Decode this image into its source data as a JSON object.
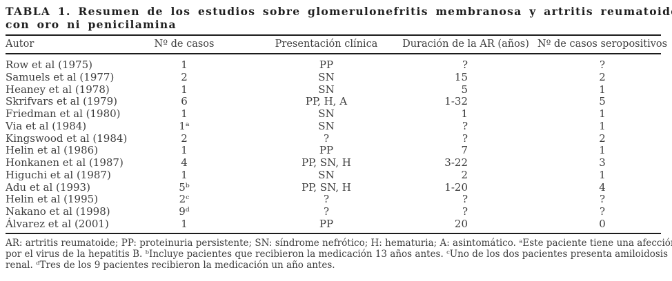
{
  "colors": {
    "background": "#ffffff",
    "text": "#3d3d3d",
    "title": "#1f1f1f",
    "rule": "#1c1c1c"
  },
  "title": {
    "line1": "TABLA 1. Resumen de los estudios sobre glomerulonefritis membranosa y artritis reumatoide no tratada",
    "line2": "con oro ni penicilamina"
  },
  "table": {
    "columns": [
      "Autor",
      "Nº de casos",
      "Presentación clínica",
      "Duración de la AR (años)",
      "Nº de casos seropositivos"
    ],
    "rows": [
      {
        "autor": "Row et al (1975)",
        "casos": "1",
        "presentacion": "PP",
        "duracion": "?",
        "seropositivos": "?"
      },
      {
        "autor": "Samuels et al (1977)",
        "casos": "2",
        "presentacion": "SN",
        "duracion": "15",
        "seropositivos": "2"
      },
      {
        "autor": "Heaney et al (1978)",
        "casos": "1",
        "presentacion": "SN",
        "duracion": "5",
        "seropositivos": "1"
      },
      {
        "autor": "Skrifvars et al (1979)",
        "casos": "6",
        "presentacion": "PP, H, A",
        "duracion": "1-32",
        "seropositivos": "5"
      },
      {
        "autor": "Friedman et al (1980)",
        "casos": "1",
        "presentacion": "SN",
        "duracion": "1",
        "seropositivos": "1"
      },
      {
        "autor": "Via et al (1984)",
        "casos": "1ᵃ",
        "presentacion": "SN",
        "duracion": "?",
        "seropositivos": "1"
      },
      {
        "autor": "Kingswood et al (1984)",
        "casos": "2",
        "presentacion": "?",
        "duracion": "?",
        "seropositivos": "2"
      },
      {
        "autor": "Helin et al (1986)",
        "casos": "1",
        "presentacion": "PP",
        "duracion": "7",
        "seropositivos": "1"
      },
      {
        "autor": "Honkanen et al (1987)",
        "casos": "4",
        "presentacion": "PP, SN, H",
        "duracion": "3-22",
        "seropositivos": "3"
      },
      {
        "autor": "Higuchi et al (1987)",
        "casos": "1",
        "presentacion": "SN",
        "duracion": "2",
        "seropositivos": "1"
      },
      {
        "autor": "Adu et al (1993)",
        "casos": "5ᵇ",
        "presentacion": "PP, SN, H",
        "duracion": "1-20",
        "seropositivos": "4"
      },
      {
        "autor": "Helin et al (1995)",
        "casos": "2ᶜ",
        "presentacion": "?",
        "duracion": "?",
        "seropositivos": "?"
      },
      {
        "autor": "Nakano et al (1998)",
        "casos": "9ᵈ",
        "presentacion": "?",
        "duracion": "?",
        "seropositivos": "?"
      },
      {
        "autor": "Álvarez et al (2001)",
        "casos": "1",
        "presentacion": "PP",
        "duracion": "20",
        "seropositivos": "0"
      }
    ]
  },
  "footnotes": {
    "lines": [
      "AR: artritis reumatoide; PP: proteinuria persistente; SN: síndrome nefrótico; H: hematuria; A: asintomático. ᵃEste paciente tiene una afección renal",
      "por el virus de la hepatitis B. ᵇIncluye pacientes que recibieron la medicación 13 años antes. ᶜUno de los dos pacientes presenta amiloidosis",
      "renal. ᵈTres de los 9 pacientes recibieron la medicación un año antes."
    ]
  }
}
